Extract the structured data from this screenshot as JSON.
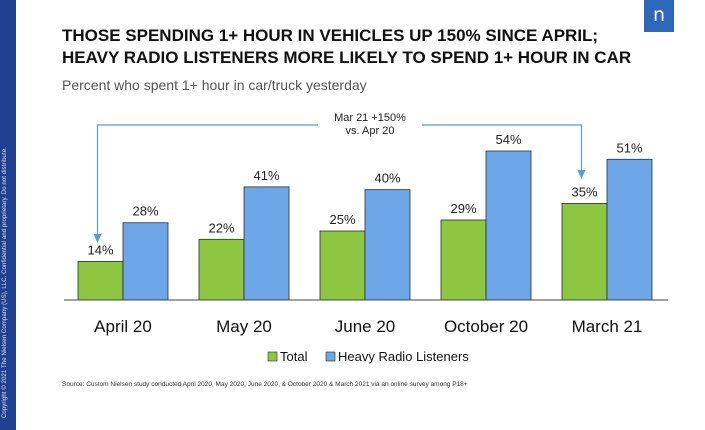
{
  "title_lines": [
    "THOSE SPENDING 1+ HOUR IN VEHICLES UP 150% SINCE APRIL;",
    "HEAVY RADIO LISTENERS MORE LIKELY TO SPEND 1+ HOUR IN CAR"
  ],
  "subtitle": "Percent who spent 1+ hour in car/truck yesterday",
  "logo_letter": "n",
  "sidebar_text": "Copyright © 2021 The Nielsen Company (US), LLC. Confidential and proprietary. Do not distribute.",
  "source": "Source: Custom Nielsen study conducted April 2020, May 2020, June 2020, & October 2020 & March 2021 via an online survey among P18+",
  "annotation": {
    "lines": [
      "Mar 21 +150%",
      "vs. Apr 20"
    ]
  },
  "colors": {
    "total": "#8dc641",
    "heavy": "#6da7e8",
    "bar_stroke": "#2e2e2e",
    "arrow": "#5b9bd5",
    "sidebar": "#1f3f8f",
    "logo": "#2d67b8"
  },
  "chart_data": {
    "type": "bar",
    "categories": [
      "April 20",
      "May 20",
      "June 20",
      "October 20",
      "March 21"
    ],
    "series": [
      {
        "name": "Total",
        "values": [
          14,
          22,
          25,
          29,
          35
        ]
      },
      {
        "name": "Heavy Radio Listeners",
        "values": [
          28,
          41,
          40,
          54,
          51
        ]
      }
    ],
    "data_labels": [
      [
        "14%",
        "22%",
        "25%",
        "29%",
        "35%"
      ],
      [
        "28%",
        "41%",
        "40%",
        "54%",
        "51%"
      ]
    ],
    "ylim": [
      0,
      60
    ],
    "grid": false,
    "legend_position": "bottom"
  }
}
